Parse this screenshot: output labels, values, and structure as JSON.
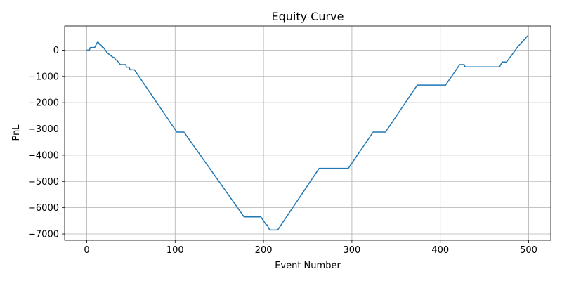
{
  "chart_data": {
    "type": "line",
    "title": "Equity Curve",
    "xlabel": "Event Number",
    "ylabel": "PnL",
    "xlim": [
      -25,
      525
    ],
    "ylim": [
      -7240,
      920
    ],
    "xticks": [
      0,
      100,
      200,
      300,
      400,
      500
    ],
    "yticks": [
      0,
      -1000,
      -2000,
      -3000,
      -4000,
      -5000,
      -6000,
      -7000
    ],
    "xtick_labels": [
      "0",
      "100",
      "200",
      "300",
      "400",
      "500"
    ],
    "ytick_labels": [
      "0",
      "−1000",
      "−2000",
      "−3000",
      "−4000",
      "−5000",
      "−6000",
      "−7000"
    ],
    "grid": true,
    "color": "#1f77b4",
    "series": [
      {
        "x": [
          0,
          3,
          4,
          9,
          12,
          13,
          15,
          16,
          18,
          19,
          21,
          23,
          30,
          31,
          33,
          34,
          38,
          44,
          45,
          48,
          49,
          52,
          54,
          102,
          110,
          178,
          197,
          203,
          204,
          207,
          208,
          216,
          263,
          264,
          296,
          324,
          338,
          374,
          406,
          422,
          427,
          428,
          467,
          470,
          475,
          485,
          487,
          499
        ],
        "y": [
          0,
          0,
          100,
          100,
          300,
          300,
          200,
          200,
          100,
          100,
          0,
          -100,
          -280,
          -280,
          -380,
          -380,
          -550,
          -550,
          -650,
          -650,
          -750,
          -750,
          -750,
          -3120,
          -3120,
          -6350,
          -6350,
          -6650,
          -6650,
          -6850,
          -6850,
          -6850,
          -4500,
          -4500,
          -4500,
          -3120,
          -3120,
          -1330,
          -1330,
          -550,
          -550,
          -640,
          -640,
          -450,
          -450,
          0,
          100,
          550
        ]
      }
    ]
  }
}
